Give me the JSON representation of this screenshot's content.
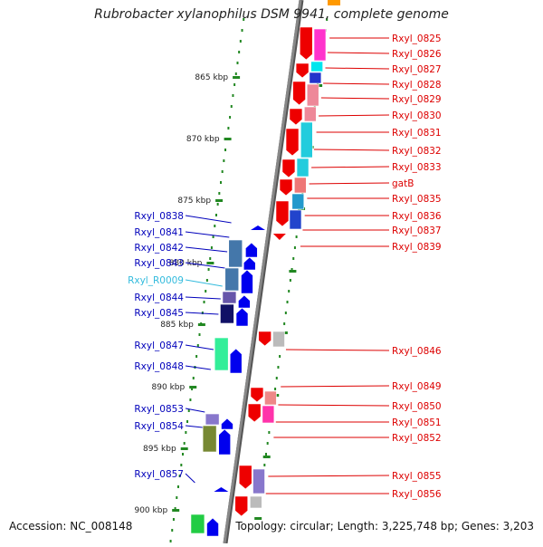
{
  "title": "Rubrobacter xylanophilus DSM 9941, complete genome",
  "footer": {
    "accession": "Accession: NC_008148",
    "topology": "Topology: circular; Length: 3,225,748 bp; Genes: 3,203"
  },
  "colors": {
    "forward_label": "#dd0000",
    "reverse_label": "#0000bb",
    "rna_label": "#33bbdd",
    "backbone": "#888888",
    "tick": "#228822"
  },
  "scale": {
    "unit": "kbp",
    "major_ticks": [
      "865",
      "870",
      "875",
      "880",
      "885",
      "890",
      "895",
      "900"
    ]
  },
  "forward_genes": [
    {
      "label": "Rxyl_0825",
      "fill": "#ff33cc"
    },
    {
      "label": "Rxyl_0826",
      "fill": "#00e5ee"
    },
    {
      "label": "Rxyl_0827",
      "fill": "#2233cc"
    },
    {
      "label": "Rxyl_0828",
      "fill": "#bbbb55"
    },
    {
      "label": "Rxyl_0829",
      "fill": "#ee8899"
    },
    {
      "label": "Rxyl_0830",
      "fill": "#ee8899"
    },
    {
      "label": "Rxyl_0831",
      "fill": "#22ccdd"
    },
    {
      "label": "Rxyl_0832",
      "fill": "#22ccdd"
    },
    {
      "label": "Rxyl_0833",
      "fill": "#ee7777"
    },
    {
      "label": "gatB",
      "fill": "#2299cc"
    },
    {
      "label": "Rxyl_0835",
      "fill": "#3399cc"
    },
    {
      "label": "Rxyl_0836",
      "fill": "#2244cc"
    },
    {
      "label": "Rxyl_0837",
      "fill": "#ee3333"
    },
    {
      "label": "Rxyl_0839",
      "fill": "#ee3333"
    },
    {
      "label": "Rxyl_0846",
      "fill": "#bbbbbb"
    },
    {
      "label": "Rxyl_0849",
      "fill": "#ee8888"
    },
    {
      "label": "Rxyl_0850",
      "fill": "#ff77aa"
    },
    {
      "label": "Rxyl_0851",
      "fill": "#ff33aa"
    },
    {
      "label": "Rxyl_0852",
      "fill": "#ee3333"
    },
    {
      "label": "Rxyl_0855",
      "fill": "#8877cc"
    },
    {
      "label": "Rxyl_0856",
      "fill": "#bbbbbb"
    }
  ],
  "reverse_genes": [
    {
      "label": "Rxyl_0838",
      "fill": "#4477aa"
    },
    {
      "label": "Rxyl_0841",
      "fill": "#4477aa"
    },
    {
      "label": "Rxyl_0842",
      "fill": "#4477aa"
    },
    {
      "label": "Rxyl_0843",
      "fill": "#4477aa"
    },
    {
      "label": "Rxyl_R0009",
      "fill": "#33bbdd",
      "rna": true
    },
    {
      "label": "Rxyl_0844",
      "fill": "#6655aa"
    },
    {
      "label": "Rxyl_0845",
      "fill": "#111166"
    },
    {
      "label": "Rxyl_0847",
      "fill": "#33ee99"
    },
    {
      "label": "Rxyl_0848",
      "fill": "#33ee99"
    },
    {
      "label": "Rxyl_0853",
      "fill": "#8877cc"
    },
    {
      "label": "Rxyl_0854",
      "fill": "#778833"
    },
    {
      "label": "Rxyl_0857",
      "fill": "#22cc44"
    }
  ]
}
